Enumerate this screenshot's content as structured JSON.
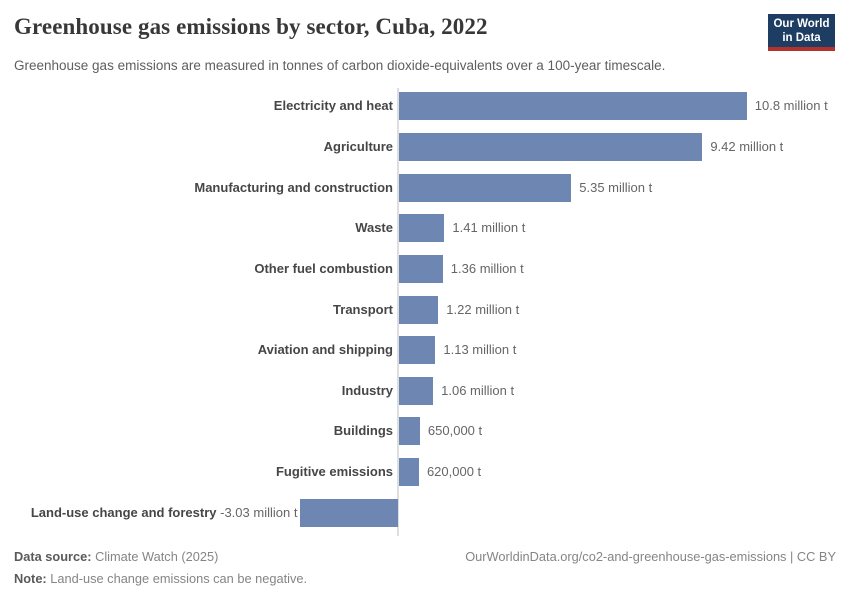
{
  "header": {
    "title": "Greenhouse gas emissions by sector, Cuba, 2022",
    "subtitle": "Greenhouse gas emissions are measured in tonnes of carbon dioxide-equivalents over a 100-year timescale.",
    "logo": {
      "line1": "Our World",
      "line2": "in Data"
    }
  },
  "chart_data": {
    "type": "bar",
    "orientation": "horizontal",
    "title": "Greenhouse gas emissions by sector, Cuba, 2022",
    "unit": "tonnes of carbon dioxide-equivalents",
    "xlim": [
      -3.03,
      10.8
    ],
    "grid": false,
    "legend": "none",
    "categories": [
      "Electricity and heat",
      "Agriculture",
      "Manufacturing and construction",
      "Waste",
      "Other fuel combustion",
      "Transport",
      "Aviation and shipping",
      "Industry",
      "Buildings",
      "Fugitive emissions",
      "Land-use change and forestry"
    ],
    "values_million_t": [
      10.8,
      9.42,
      5.35,
      1.41,
      1.36,
      1.22,
      1.13,
      1.06,
      0.65,
      0.62,
      -3.03
    ],
    "value_labels": [
      "10.8 million t",
      "9.42 million t",
      "5.35 million t",
      "1.41 million t",
      "1.36 million t",
      "1.22 million t",
      "1.13 million t",
      "1.06 million t",
      "650,000 t",
      "620,000 t",
      "-3.03 million t"
    ],
    "bar_color": "#6e86b2",
    "axis_color": "#dedede"
  },
  "footer": {
    "data_source_label": "Data source:",
    "data_source_value": " Climate Watch (2025)",
    "note_label": "Note:",
    "note_value": " Land-use change emissions can be negative.",
    "attribution": "OurWorldinData.org/co2-and-greenhouse-gas-emissions | CC BY"
  }
}
